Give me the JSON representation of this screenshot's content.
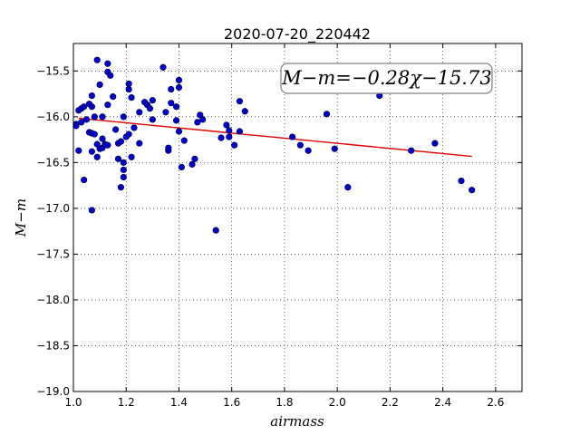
{
  "chart_data": {
    "type": "scatter",
    "title": "2020-07-20_220442",
    "xlabel": "airmass",
    "ylabel": "M−m",
    "xlim": [
      1.0,
      2.7
    ],
    "ylim": [
      -19.0,
      -15.2
    ],
    "y_inverted": true,
    "grid": true,
    "grid_style": "dotted",
    "x_ticks": [
      1.0,
      1.2,
      1.4,
      1.6,
      1.8,
      2.0,
      2.2,
      2.4,
      2.6
    ],
    "x_tick_labels": [
      "1.0",
      "1.2",
      "1.4",
      "1.6",
      "1.8",
      "2.0",
      "2.2",
      "2.4",
      "2.6"
    ],
    "y_ticks": [
      -15.5,
      -16.0,
      -16.5,
      -17.0,
      -17.5,
      -18.0,
      -18.5,
      -19.0
    ],
    "y_tick_labels": [
      "−15.5",
      "−16.0",
      "−16.5",
      "−17.0",
      "−17.5",
      "−18.0",
      "−18.5",
      "−19.0"
    ],
    "annotation": "M−m=−0.28χ−15.73",
    "annotation_placement": "top-right",
    "points_color": "#0000cc",
    "fit_color": "#e00000",
    "fit": {
      "slope": -0.28,
      "intercept": -15.73,
      "x_range": [
        1.02,
        2.51
      ]
    },
    "points": [
      [
        1.01,
        -16.08
      ],
      [
        1.01,
        -16.1
      ],
      [
        1.02,
        -15.93
      ],
      [
        1.02,
        -16.37
      ],
      [
        1.03,
        -15.91
      ],
      [
        1.03,
        -16.06
      ],
      [
        1.04,
        -15.89
      ],
      [
        1.04,
        -16.69
      ],
      [
        1.05,
        -16.03
      ],
      [
        1.06,
        -16.17
      ],
      [
        1.06,
        -15.86
      ],
      [
        1.07,
        -15.89
      ],
      [
        1.07,
        -15.77
      ],
      [
        1.07,
        -16.38
      ],
      [
        1.07,
        -16.18
      ],
      [
        1.07,
        -17.02
      ],
      [
        1.08,
        -16.19
      ],
      [
        1.08,
        -16.0
      ],
      [
        1.09,
        -16.3
      ],
      [
        1.09,
        -16.44
      ],
      [
        1.09,
        -15.38
      ],
      [
        1.1,
        -15.65
      ],
      [
        1.1,
        -16.35
      ],
      [
        1.11,
        -16.0
      ],
      [
        1.11,
        -16.34
      ],
      [
        1.11,
        -16.24
      ],
      [
        1.12,
        -16.3
      ],
      [
        1.13,
        -15.87
      ],
      [
        1.13,
        -16.31
      ],
      [
        1.13,
        -15.42
      ],
      [
        1.13,
        -15.51
      ],
      [
        1.14,
        -15.55
      ],
      [
        1.15,
        -15.78
      ],
      [
        1.16,
        -16.14
      ],
      [
        1.17,
        -16.46
      ],
      [
        1.17,
        -16.29
      ],
      [
        1.18,
        -16.27
      ],
      [
        1.18,
        -16.77
      ],
      [
        1.19,
        -16.58
      ],
      [
        1.19,
        -16.66
      ],
      [
        1.19,
        -16.5
      ],
      [
        1.19,
        -16.0
      ],
      [
        1.2,
        -16.22
      ],
      [
        1.21,
        -15.64
      ],
      [
        1.21,
        -15.7
      ],
      [
        1.21,
        -16.19
      ],
      [
        1.22,
        -16.44
      ],
      [
        1.22,
        -15.79
      ],
      [
        1.23,
        -16.12
      ],
      [
        1.25,
        -15.95
      ],
      [
        1.25,
        -16.29
      ],
      [
        1.27,
        -15.84
      ],
      [
        1.28,
        -15.87
      ],
      [
        1.29,
        -15.91
      ],
      [
        1.3,
        -15.82
      ],
      [
        1.3,
        -16.03
      ],
      [
        1.34,
        -15.46
      ],
      [
        1.35,
        -15.95
      ],
      [
        1.36,
        -16.37
      ],
      [
        1.36,
        -16.34
      ],
      [
        1.37,
        -15.7
      ],
      [
        1.37,
        -15.85
      ],
      [
        1.39,
        -15.89
      ],
      [
        1.39,
        -16.04
      ],
      [
        1.4,
        -15.6
      ],
      [
        1.4,
        -15.68
      ],
      [
        1.4,
        -16.16
      ],
      [
        1.41,
        -16.55
      ],
      [
        1.42,
        -16.26
      ],
      [
        1.45,
        -16.52
      ],
      [
        1.46,
        -16.46
      ],
      [
        1.47,
        -16.06
      ],
      [
        1.48,
        -15.98
      ],
      [
        1.49,
        -16.03
      ],
      [
        1.54,
        -17.24
      ],
      [
        1.56,
        -16.23
      ],
      [
        1.58,
        -16.09
      ],
      [
        1.59,
        -16.15
      ],
      [
        1.59,
        -16.22
      ],
      [
        1.61,
        -16.31
      ],
      [
        1.63,
        -15.83
      ],
      [
        1.63,
        -16.16
      ],
      [
        1.65,
        -15.94
      ],
      [
        1.83,
        -16.22
      ],
      [
        1.86,
        -16.31
      ],
      [
        1.89,
        -16.37
      ],
      [
        1.96,
        -15.97
      ],
      [
        1.99,
        -16.35
      ],
      [
        2.04,
        -16.77
      ],
      [
        2.16,
        -15.77
      ],
      [
        2.28,
        -16.37
      ],
      [
        2.37,
        -16.29
      ],
      [
        2.47,
        -16.7
      ],
      [
        2.51,
        -16.8
      ]
    ]
  }
}
